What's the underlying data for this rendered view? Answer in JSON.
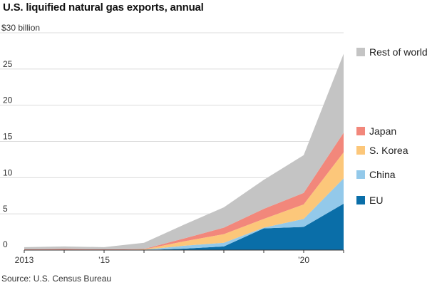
{
  "header": {
    "title": "U.S. liquified natural gas exports, annual"
  },
  "footer": {
    "source": "Source: U.S. Census Bureau"
  },
  "chart_data": {
    "type": "area",
    "stacked": true,
    "title": "U.S. liquified natural gas exports, annual",
    "xlabel": "",
    "ylabel": "$ billion",
    "x": [
      2013,
      2014,
      2015,
      2016,
      2017,
      2018,
      2019,
      2020,
      2021
    ],
    "xlim": [
      2013,
      2021
    ],
    "ylim": [
      0,
      30
    ],
    "x_ticks": [
      {
        "value": 2013,
        "label": "2013"
      },
      {
        "value": 2015,
        "label": "’15"
      },
      {
        "value": 2020,
        "label": "’20"
      }
    ],
    "y_ticks": [
      {
        "value": 0,
        "label": "0"
      },
      {
        "value": 5,
        "label": "5"
      },
      {
        "value": 10,
        "label": "10"
      },
      {
        "value": 15,
        "label": "15"
      },
      {
        "value": 20,
        "label": "20"
      },
      {
        "value": 25,
        "label": "25"
      },
      {
        "value": 30,
        "label": "$30 billion"
      }
    ],
    "grid": true,
    "legend_position": "right",
    "series": [
      {
        "name": "EU",
        "color": "#0a6ea8",
        "values": [
          0.0,
          0.0,
          0.0,
          0.0,
          0.2,
          0.5,
          3.0,
          3.2,
          6.4
        ]
      },
      {
        "name": "China",
        "color": "#93c9ea",
        "values": [
          0.0,
          0.0,
          0.0,
          0.05,
          0.4,
          0.5,
          0.1,
          1.1,
          3.5
        ]
      },
      {
        "name": "S. Korea",
        "color": "#fcc77a",
        "values": [
          0.0,
          0.0,
          0.0,
          0.05,
          0.6,
          1.2,
          1.2,
          2.0,
          3.6
        ]
      },
      {
        "name": "Japan",
        "color": "#f2877b",
        "values": [
          0.1,
          0.15,
          0.1,
          0.05,
          0.4,
          0.9,
          1.4,
          1.6,
          2.7
        ]
      },
      {
        "name": "Rest of world",
        "color": "#c4c4c4",
        "values": [
          0.3,
          0.35,
          0.3,
          0.85,
          1.9,
          2.8,
          4.0,
          5.2,
          10.9
        ]
      }
    ],
    "legend": [
      {
        "name": "Rest of world",
        "color": "#c4c4c4"
      },
      {
        "name": "Japan",
        "color": "#f2877b"
      },
      {
        "name": "S. Korea",
        "color": "#fcc77a"
      },
      {
        "name": "China",
        "color": "#93c9ea"
      },
      {
        "name": "EU",
        "color": "#0a6ea8"
      }
    ]
  }
}
